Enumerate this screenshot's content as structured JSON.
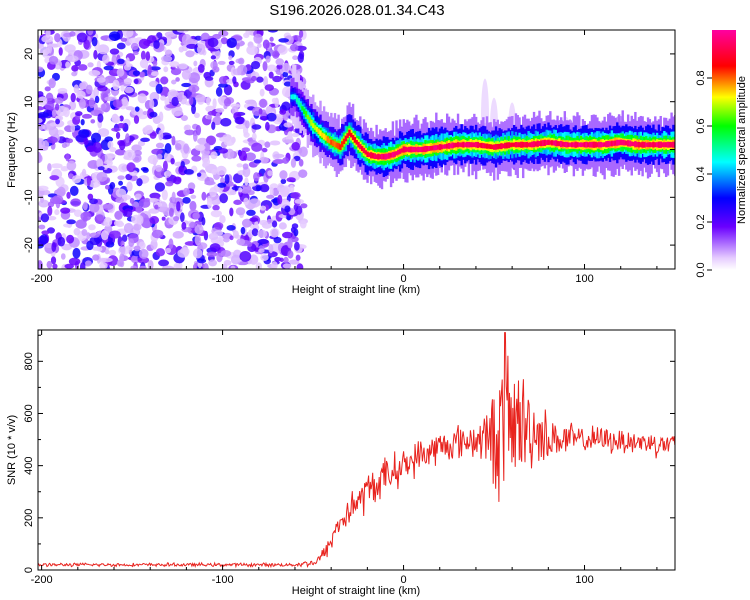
{
  "title": "S196.2026.028.01.34.C43",
  "chart_data": [
    {
      "type": "heatmap",
      "xlabel": "Height of straight line (km)",
      "ylabel": "Frequency (Hz)",
      "xlim": [
        -202,
        150
      ],
      "ylim": [
        -25,
        25
      ],
      "x_ticks": [
        -200,
        -100,
        0,
        100
      ],
      "y_ticks": [
        -20,
        -10,
        0,
        10,
        20
      ],
      "colorbar": {
        "label": "Normalized spectral amplitude",
        "range": [
          0,
          1
        ],
        "ticks": [
          0.0,
          0.2,
          0.4,
          0.6,
          0.8
        ]
      },
      "noise_region": {
        "x_range": [
          -202,
          -55
        ],
        "y_range": [
          -25,
          25
        ],
        "level": [
          0.05,
          0.3
        ]
      },
      "ridge": {
        "x": [
          -60,
          -55,
          -50,
          -45,
          -40,
          -35,
          -30,
          -25,
          -20,
          -15,
          -10,
          -5,
          0,
          10,
          20,
          30,
          40,
          50,
          60,
          70,
          80,
          90,
          100,
          110,
          120,
          130,
          140,
          150
        ],
        "frequency": [
          11,
          8,
          5,
          3,
          1.5,
          0.5,
          3.5,
          1,
          -1,
          -1.5,
          -1.5,
          -1,
          0,
          0,
          0.5,
          1,
          1,
          0.5,
          1,
          1,
          1.5,
          1,
          1,
          1,
          1.5,
          1,
          1,
          1
        ],
        "amplitude": [
          0.45,
          0.6,
          0.7,
          0.75,
          0.8,
          0.85,
          0.88,
          0.9,
          0.92,
          0.93,
          0.95,
          0.95,
          0.95,
          0.95,
          0.95,
          0.95,
          0.93,
          0.9,
          0.9,
          0.93,
          0.93,
          0.95,
          0.95,
          0.95,
          0.95,
          0.95,
          0.95,
          0.95
        ]
      }
    },
    {
      "type": "line",
      "xlabel": "Height of straight line (km)",
      "ylabel": "SNR (10 * v/v)",
      "xlim": [
        -202,
        150
      ],
      "ylim": [
        0,
        920
      ],
      "x_ticks": [
        -200,
        -100,
        0,
        100
      ],
      "y_ticks": [
        0,
        200,
        400,
        600,
        800
      ],
      "series": [
        {
          "name": "SNR",
          "color": "#e8231e",
          "x": [
            -202,
            -60,
            -48,
            -42,
            -38,
            -30,
            -20,
            -10,
            0,
            10,
            20,
            30,
            40,
            48,
            52,
            55,
            60,
            65,
            70,
            75,
            80,
            85,
            90,
            95,
            100,
            110,
            120,
            130,
            140,
            150
          ],
          "envelope": [
            20,
            20,
            30,
            80,
            150,
            230,
            300,
            360,
            400,
            440,
            470,
            490,
            500,
            510,
            520,
            540,
            560,
            560,
            540,
            520,
            510,
            500,
            500,
            500,
            500,
            500,
            495,
            490,
            485,
            480
          ],
          "noise_amplitude": [
            8,
            8,
            20,
            40,
            60,
            80,
            90,
            90,
            80,
            80,
            80,
            80,
            90,
            150,
            300,
            380,
            300,
            260,
            200,
            150,
            110,
            90,
            80,
            70,
            60,
            60,
            60,
            60,
            60,
            60
          ],
          "peak": {
            "x": 56,
            "y": 910
          }
        }
      ]
    }
  ]
}
